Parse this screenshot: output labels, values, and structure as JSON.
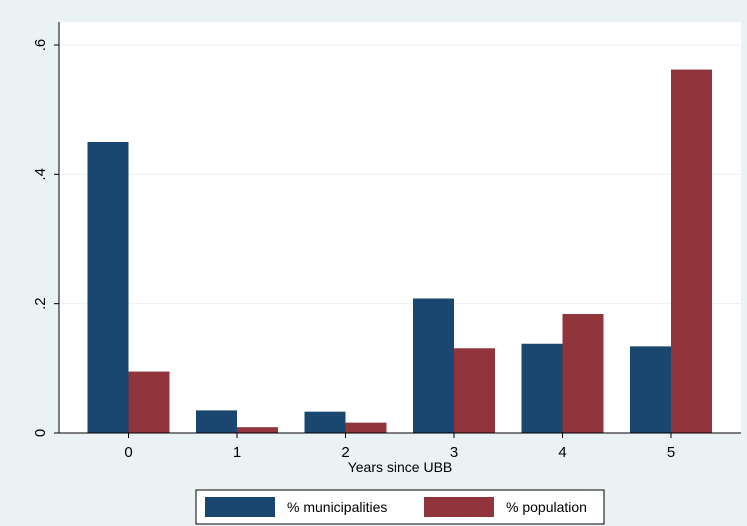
{
  "chart_data": {
    "type": "bar",
    "categories": [
      "0",
      "1",
      "2",
      "3",
      "4",
      "5"
    ],
    "series": [
      {
        "name": "% municipalities",
        "color": "#1a476f",
        "values": [
          0.45,
          0.035,
          0.033,
          0.208,
          0.138,
          0.134
        ]
      },
      {
        "name": "% population",
        "color": "#90353b",
        "values": [
          0.095,
          0.009,
          0.016,
          0.131,
          0.184,
          0.562
        ]
      }
    ],
    "xlabel": "Years since UBB",
    "ylabel": "",
    "ylim": [
      0,
      0.6
    ],
    "yticks": [
      0,
      0.2,
      0.4,
      0.6
    ],
    "ytick_labels": [
      "0",
      ".2",
      ".4",
      ".6"
    ],
    "grid": true,
    "legend_position": "bottom"
  },
  "colors": {
    "background": "#eaf2f3",
    "plot_area": "#ffffff",
    "grid": "#eaf2f3"
  }
}
